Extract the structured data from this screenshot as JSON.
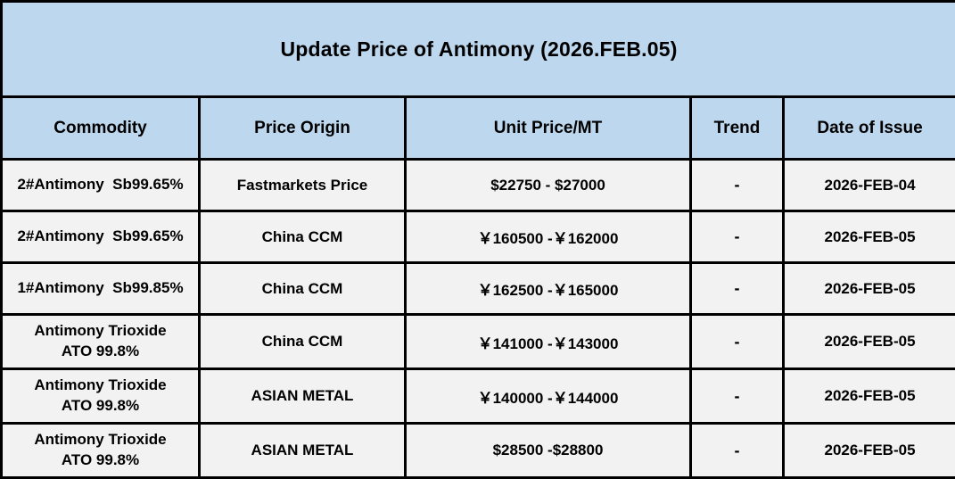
{
  "chart_data": {
    "type": "table",
    "title": "Update Price of Antimony (2026.FEB.05)",
    "columns": [
      "Commodity",
      "Price Origin",
      "Unit Price/MT",
      "Trend",
      "Date of Issue"
    ],
    "rows": [
      {
        "commodity": "2#Antimony  Sb99.65%",
        "origin": "Fastmarkets Price",
        "price": "$22750 - $27000",
        "trend": "-",
        "date": "2026-FEB-04"
      },
      {
        "commodity": "2#Antimony  Sb99.65%",
        "origin": "China CCM",
        "price": "￥160500 -￥162000",
        "trend": "-",
        "date": "2026-FEB-05"
      },
      {
        "commodity": "1#Antimony  Sb99.85%",
        "origin": "China CCM",
        "price": "￥162500 -￥165000",
        "trend": "-",
        "date": "2026-FEB-05"
      },
      {
        "commodity": "Antimony Trioxide\nATO 99.8%",
        "origin": "China CCM",
        "price": "￥141000 -￥143000",
        "trend": "-",
        "date": "2026-FEB-05"
      },
      {
        "commodity": "Antimony Trioxide\nATO 99.8%",
        "origin": "ASIAN METAL",
        "price": "￥140000 -￥144000",
        "trend": "-",
        "date": "2026-FEB-05"
      },
      {
        "commodity": "Antimony Trioxide\nATO 99.8%",
        "origin": "ASIAN METAL",
        "price": "$28500 -$28800",
        "trend": "-",
        "date": "2026-FEB-05"
      }
    ]
  },
  "colors": {
    "title_header_bg": "#BDD7EE",
    "row_bg": "#F2F2F2",
    "border": "#000000",
    "text": "#000000"
  }
}
